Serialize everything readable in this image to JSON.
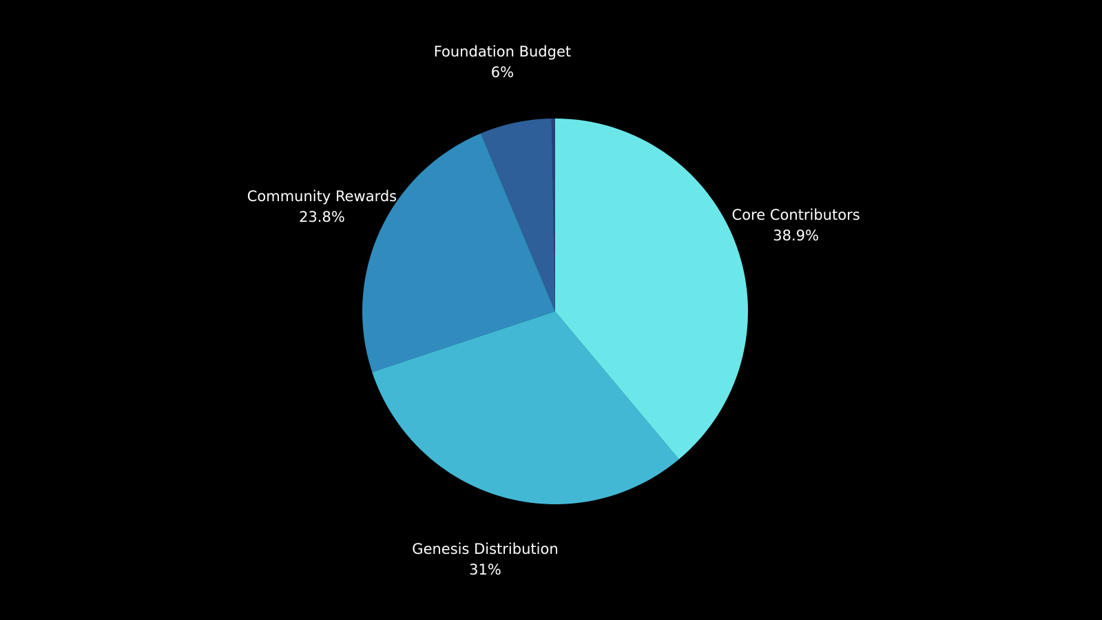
{
  "chart_data": {
    "type": "pie",
    "start_angle_deg": 0,
    "direction": "clockwise",
    "legend": "none",
    "slices": [
      {
        "label": "Core Contributors",
        "value": 38.9,
        "value_label": "38.9%",
        "color": "#6be7e9"
      },
      {
        "label": "Genesis Distribution",
        "value": 31,
        "value_label": "31%",
        "color": "#43b8d4"
      },
      {
        "label": "Community Rewards",
        "value": 23.8,
        "value_label": "23.8%",
        "color": "#2f8cbc"
      },
      {
        "label": "Foundation Budget",
        "value": 6,
        "value_label": "6%",
        "color": "#2e5f98"
      },
      {
        "label": "",
        "value": 0.3,
        "value_label": "",
        "color": "#2a3f7a"
      }
    ]
  }
}
